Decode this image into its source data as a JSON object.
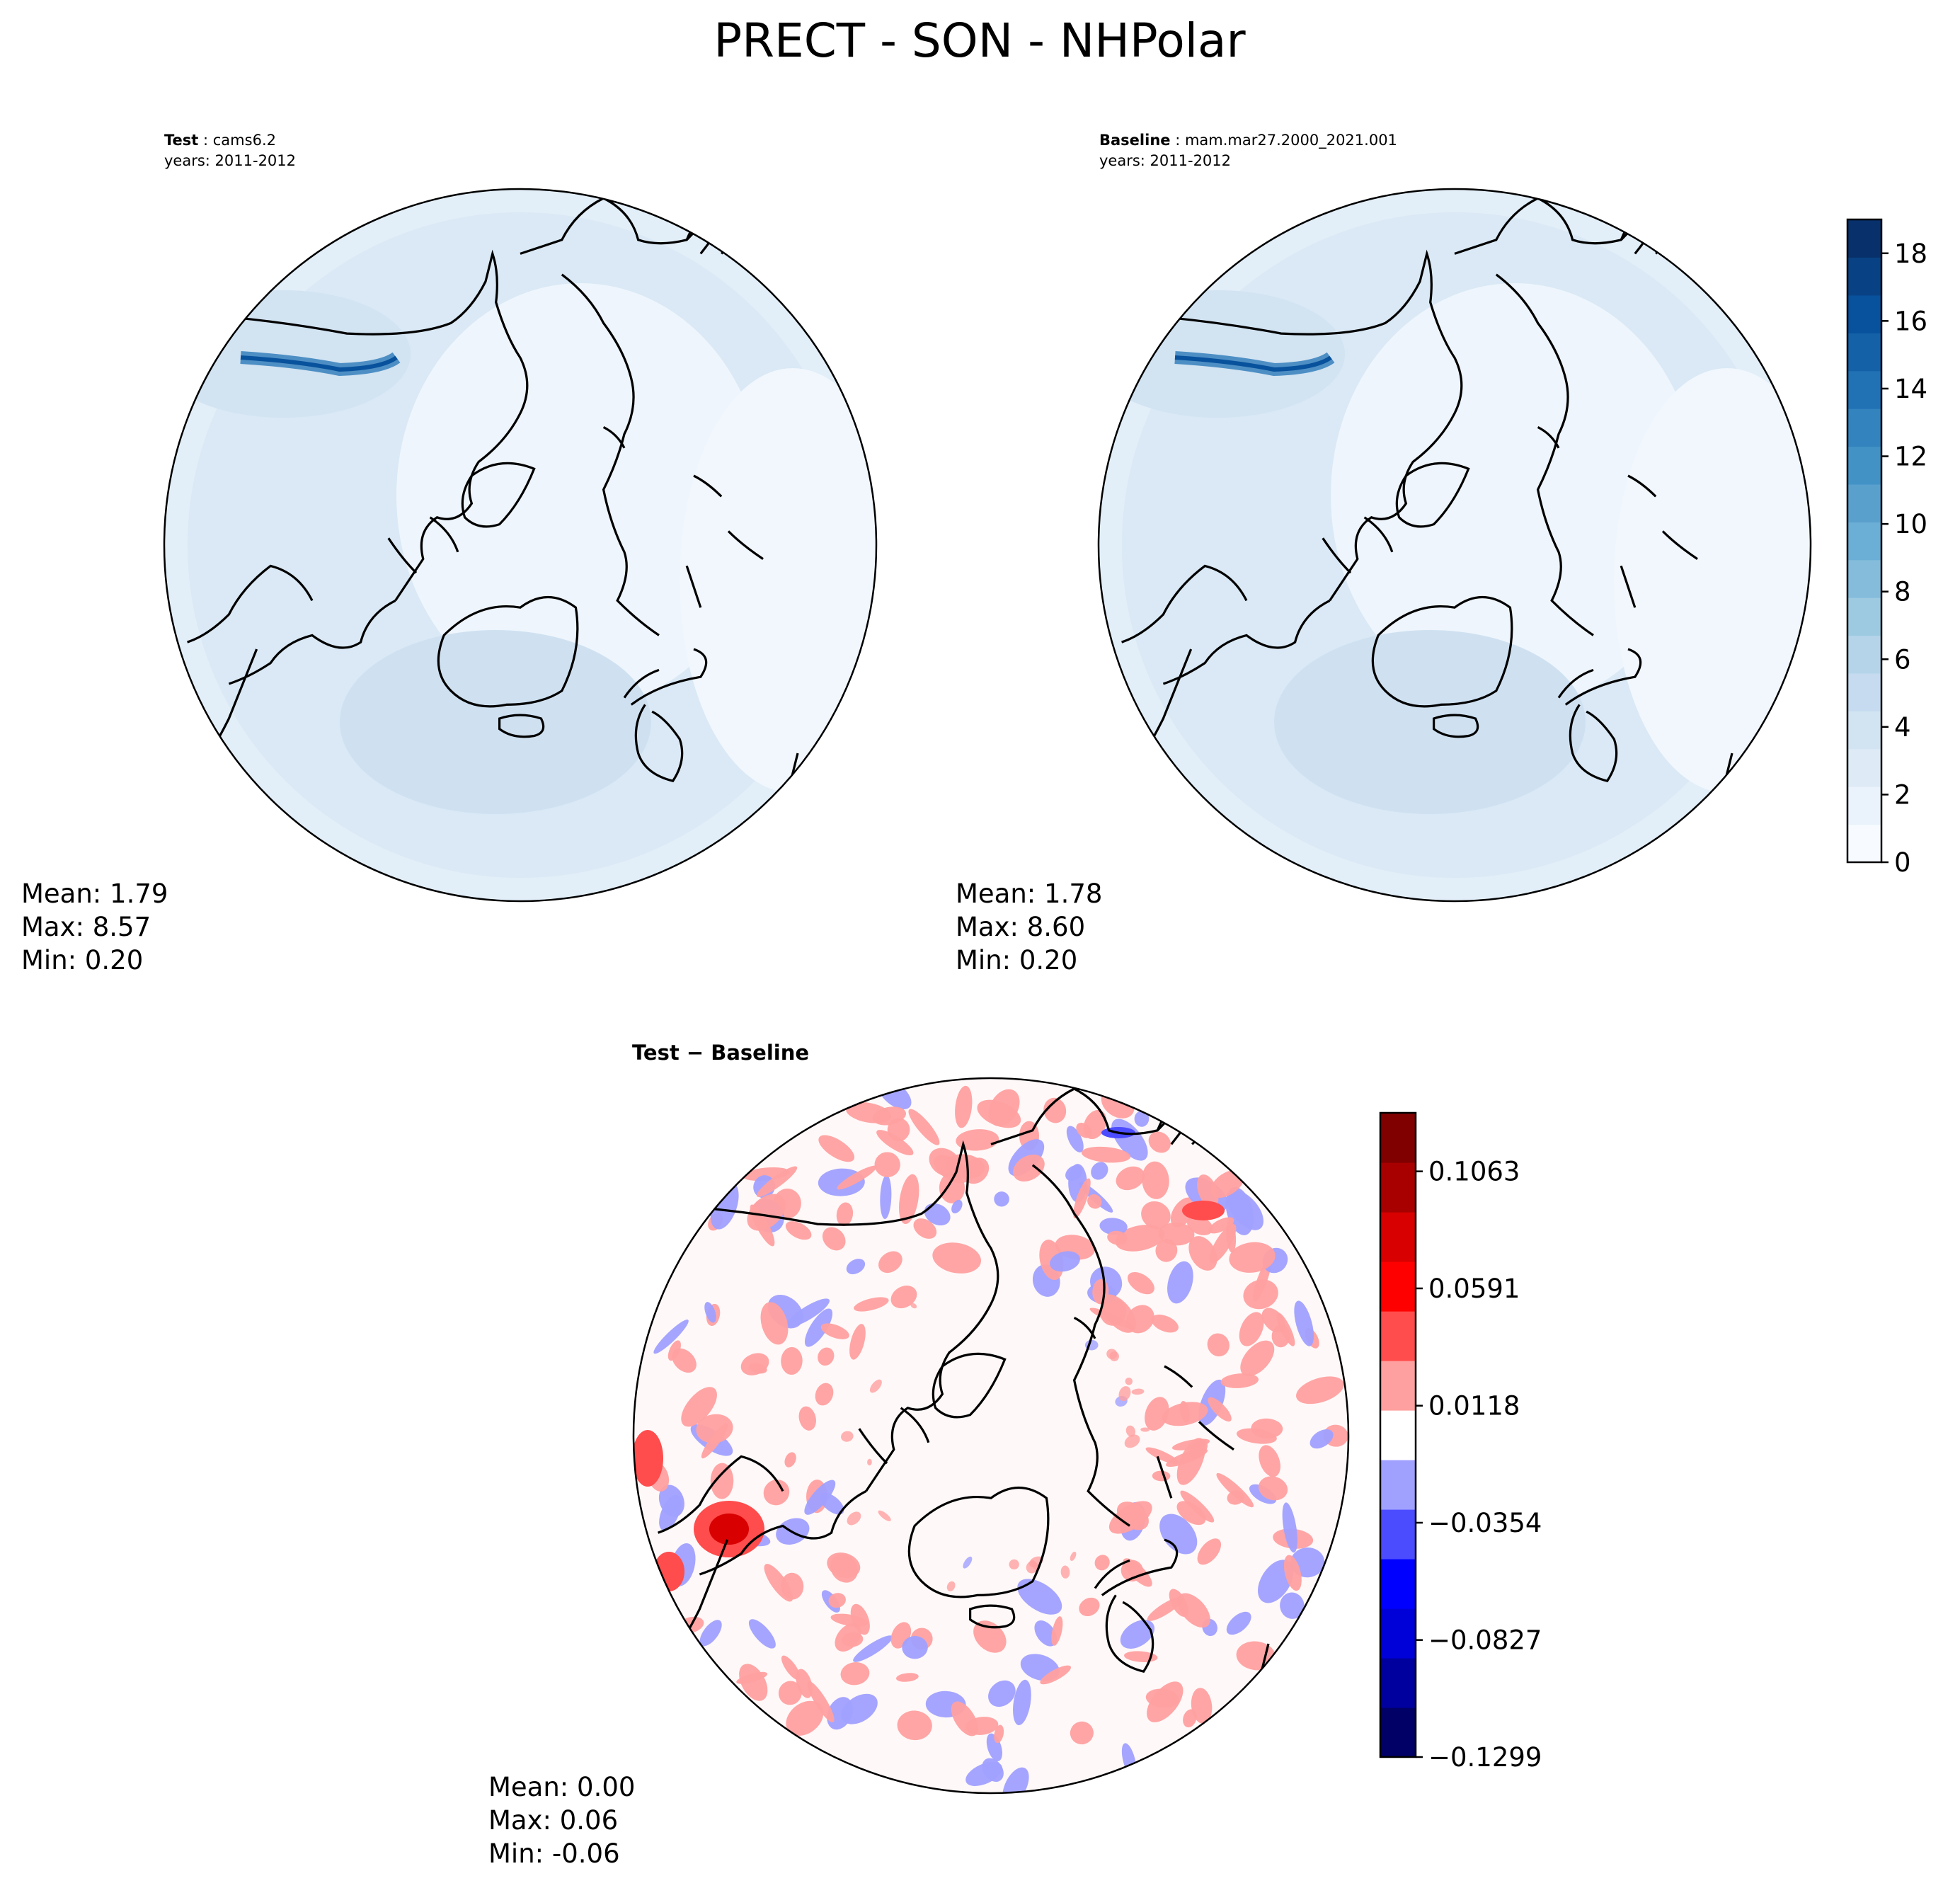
{
  "title": "PRECT - SON - NHPolar",
  "colors": {
    "background": "#ffffff",
    "coastline": "#000000",
    "precip_scale": [
      "#f7fbff",
      "#eaf3fb",
      "#deebf7",
      "#d2e4f2",
      "#c6dbef",
      "#b6d4e9",
      "#9ecae1",
      "#85bcdc",
      "#6baed6",
      "#5aa0cd",
      "#4292c6",
      "#3383be",
      "#2171b5",
      "#1461a8",
      "#08519c",
      "#084285",
      "#08306b"
    ],
    "diff_scale": [
      "#000066",
      "#00009e",
      "#0000d8",
      "#0000ff",
      "#4c4cff",
      "#a0a0ff",
      "#ffffff",
      "#ffa0a0",
      "#ff4c4c",
      "#ff0000",
      "#d80000",
      "#a80000",
      "#800000"
    ]
  },
  "chart_data": [
    {
      "type": "heatmap",
      "panel": "test",
      "label_bold": "Test",
      "label_sep": " : ",
      "label_value": "cams6.2",
      "years": "years: 2011-2012",
      "stats": {
        "mean": "Mean:  1.79",
        "max": "Max:  8.57",
        "min": "Min:  0.20"
      },
      "value_range": [
        0.2,
        8.57
      ]
    },
    {
      "type": "heatmap",
      "panel": "baseline",
      "label_bold": "Baseline",
      "label_sep": " : ",
      "label_value": "mam.mar27.2000_2021.001",
      "years": "years: 2011-2012",
      "stats": {
        "mean": "Mean:  1.78",
        "max": "Max:  8.60",
        "min": "Min:  0.20"
      },
      "value_range": [
        0.2,
        8.6
      ],
      "colorbar": {
        "ticks": [
          "0",
          "2",
          "4",
          "6",
          "8",
          "10",
          "12",
          "14",
          "16",
          "18"
        ],
        "ylim": [
          0,
          19
        ]
      }
    },
    {
      "type": "heatmap",
      "panel": "difference",
      "label_bold": "Test − Baseline",
      "stats": {
        "mean": "Mean:  0.00",
        "max": "Max:  0.06",
        "min": "Min: -0.06"
      },
      "value_range": [
        -0.06,
        0.06
      ],
      "colorbar": {
        "ticks": [
          "0.1063",
          "0.0591",
          "0.0118",
          "−0.0354",
          "−0.0827",
          "−0.1299"
        ],
        "ylim": [
          -0.1299,
          0.1299
        ]
      }
    }
  ]
}
